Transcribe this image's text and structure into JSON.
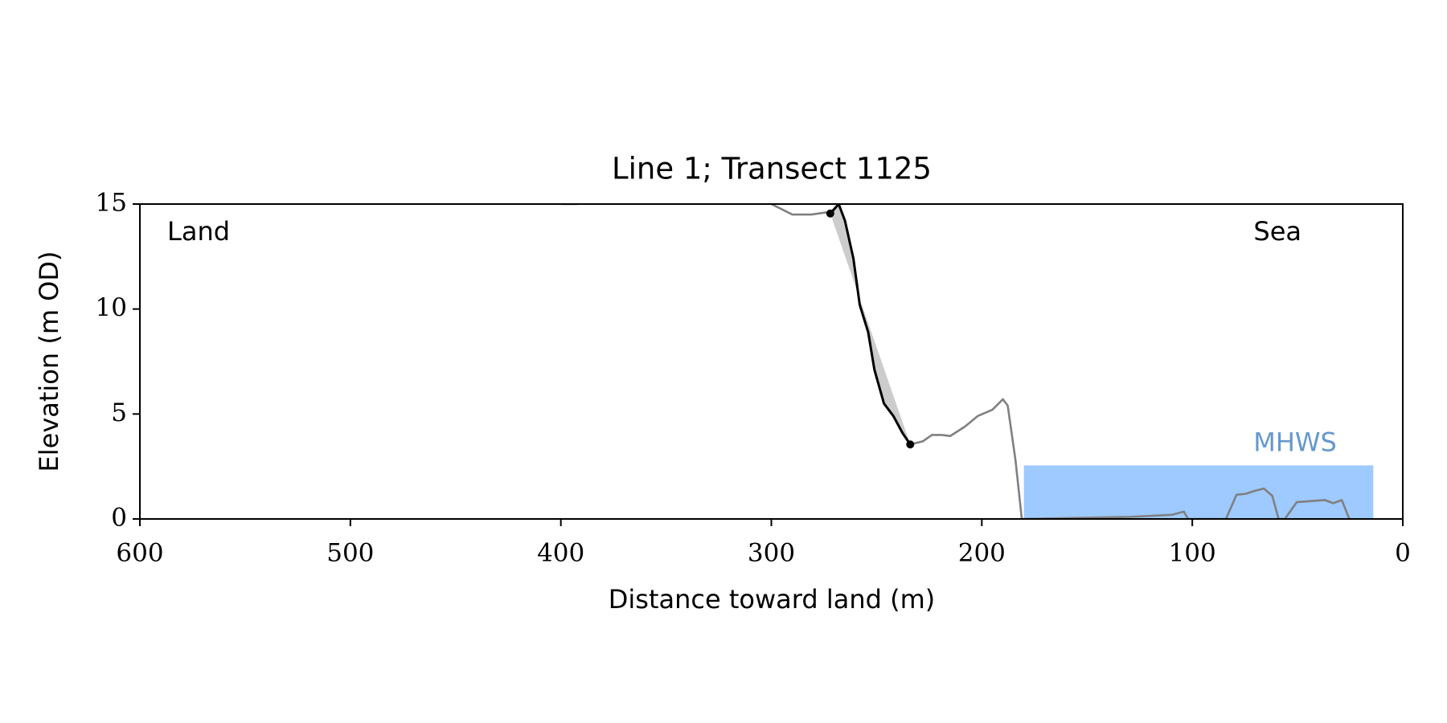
{
  "chart_data": {
    "type": "line",
    "title": "Line 1; Transect 1125",
    "xlabel": "Distance toward land (m)",
    "ylabel": "Elevation (m OD)",
    "xlim": [
      600,
      0
    ],
    "xticks": [
      600,
      500,
      400,
      300,
      200,
      100,
      0
    ],
    "ylim": [
      0,
      15
    ],
    "yticks": [
      0,
      5,
      10,
      15
    ],
    "annotations": [
      "Land",
      "Sea"
    ],
    "band": {
      "label": "MHWS",
      "value": 2.55,
      "xlim": [
        180,
        14
      ],
      "color": "#9ecaff",
      "label_color": "#6699cc"
    },
    "shade_color": "#cccccc",
    "series": [
      {
        "color": "#808080",
        "x": [
          400,
          392,
          395,
          300,
          290,
          281,
          274,
          272,
          268,
          265,
          261,
          258,
          254,
          251,
          246.5,
          242,
          237.7,
          234,
          228,
          223.7,
          219,
          215,
          208,
          202,
          195,
          190,
          187.7,
          184,
          181,
          129.4,
          109.6,
          104,
          102,
          84,
          79,
          74.6,
          70,
          66,
          62,
          59,
          56,
          50.4,
          44,
          37,
          33,
          29,
          25.4
        ],
        "values": [
          15,
          15,
          null,
          15,
          14.5,
          14.5,
          14.6,
          14.55,
          15,
          14.2,
          12.4,
          10.2,
          8.9,
          7.1,
          5.5,
          4.9,
          4.1,
          3.55,
          3.7,
          4.0,
          4.0,
          3.95,
          4.4,
          4.9,
          5.2,
          5.7,
          5.4,
          2.8,
          0,
          0.1,
          0.2,
          0.35,
          0,
          0,
          1.15,
          1.2,
          1.35,
          1.45,
          1.1,
          0,
          0,
          0.8,
          0.85,
          0.9,
          0.75,
          0.9,
          0
        ]
      },
      {
        "color": "#000000",
        "x": [
          272,
          268,
          265,
          261,
          258,
          254,
          251,
          246.5,
          242,
          237.7,
          234
        ],
        "values": [
          14.55,
          15,
          14.2,
          12.4,
          10.2,
          8.9,
          7.1,
          5.5,
          4.9,
          4.1,
          3.55
        ]
      }
    ],
    "markers": {
      "color": "#000000",
      "x": [
        272,
        234
      ],
      "values": [
        14.55,
        3.55
      ]
    }
  }
}
